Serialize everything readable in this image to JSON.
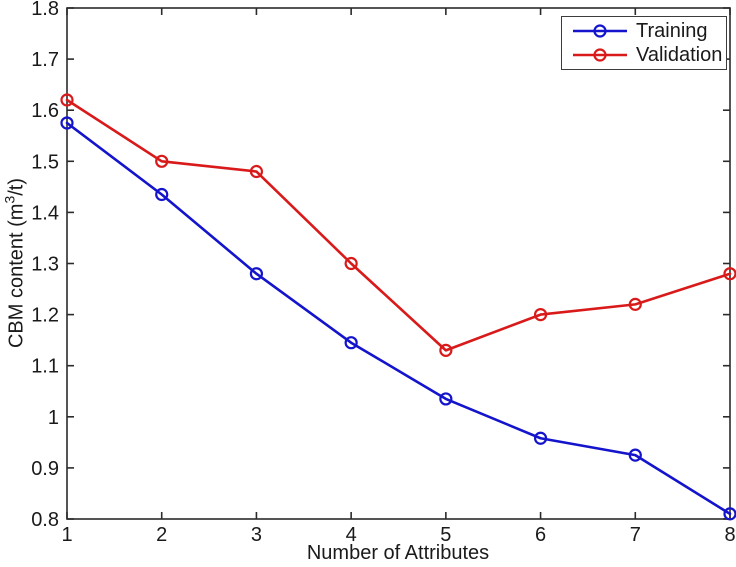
{
  "figure": {
    "xlabel": "Number of Attributes",
    "ylabel_prefix": "CBM content (m",
    "ylabel_sup": "3",
    "ylabel_suffix": "/t)",
    "background_color": "#ffffff",
    "axis_color": "#2b2b2b",
    "text_color": "#1a1a1a"
  },
  "legend": {
    "position": "top-right",
    "items": [
      {
        "label": "Training",
        "color": "#1414cc"
      },
      {
        "label": "Validation",
        "color": "#d91a1a"
      }
    ]
  },
  "chart_data": {
    "type": "line",
    "x": [
      1,
      2,
      3,
      4,
      5,
      6,
      7,
      8
    ],
    "series": [
      {
        "name": "Training",
        "color": "#1414cc",
        "marker": "circle",
        "values": [
          1.575,
          1.435,
          1.28,
          1.145,
          1.035,
          0.958,
          0.925,
          0.81
        ]
      },
      {
        "name": "Validation",
        "color": "#d91a1a",
        "marker": "circle",
        "values": [
          1.62,
          1.5,
          1.48,
          1.3,
          1.13,
          1.2,
          1.22,
          1.28
        ]
      }
    ],
    "title": "",
    "xlabel": "Number of Attributes",
    "ylabel": "CBM content (m^3/t)",
    "xlim": [
      1,
      8
    ],
    "ylim": [
      0.8,
      1.8
    ],
    "xticks": [
      1,
      2,
      3,
      4,
      5,
      6,
      7,
      8
    ],
    "yticks": [
      0.8,
      0.9,
      1,
      1.1,
      1.2,
      1.3,
      1.4,
      1.5,
      1.6,
      1.7,
      1.8
    ],
    "grid": false,
    "legend_position": "top-right"
  }
}
